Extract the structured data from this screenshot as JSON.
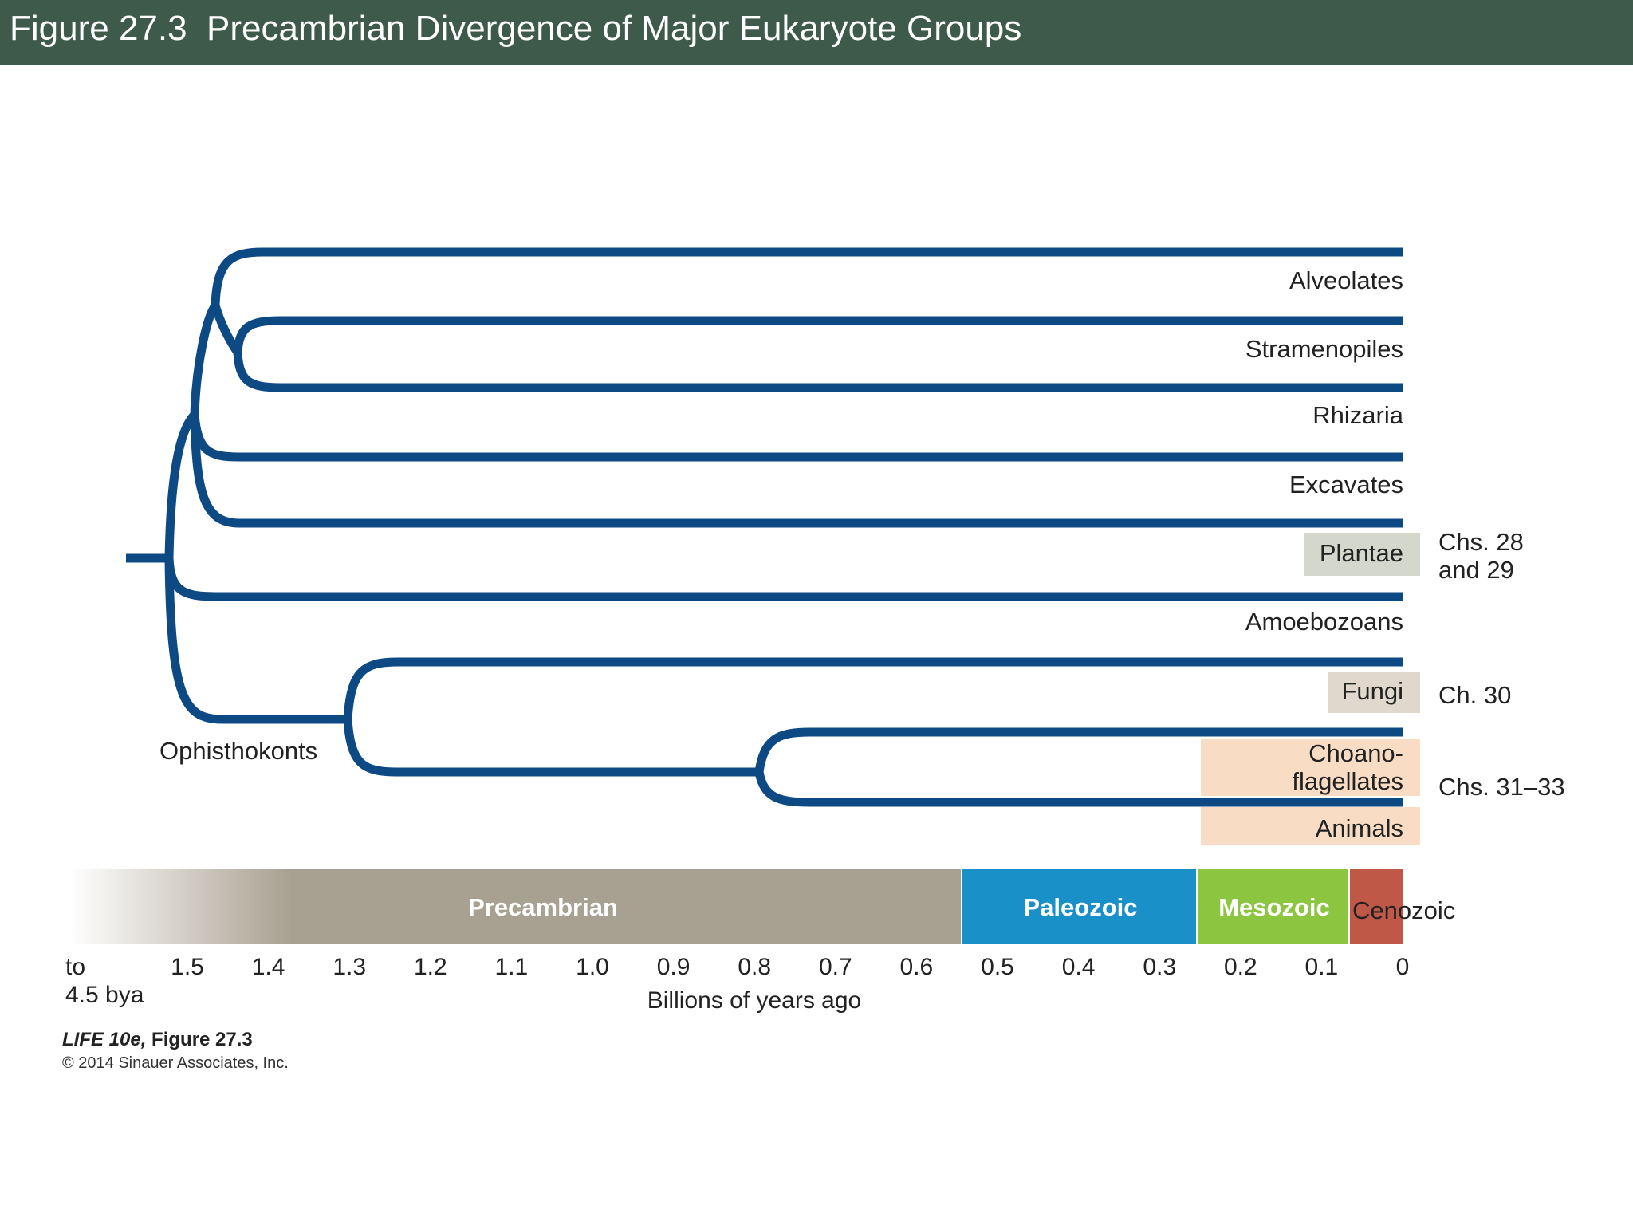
{
  "title": "Figure 27.3  Precambrian Divergence of Major Eukaryote Groups",
  "taxa": {
    "alveolates": "Alveolates",
    "stramenopiles": "Stramenopiles",
    "rhizaria": "Rhizaria",
    "excavates": "Excavates",
    "plantae": "Plantae",
    "amoebozoans": "Amoebozoans",
    "fungi": "Fungi",
    "choano1": "Choano-",
    "choano2": "flagellates",
    "animals": "Animals"
  },
  "clade_label": "Ophisthokonts",
  "chapters": {
    "plantae_1": "Chs. 28",
    "plantae_2": "and 29",
    "fungi": "Ch. 30",
    "animals": "Chs. 31–33"
  },
  "eras": {
    "precambrian": "Precambrian",
    "paleozoic": "Paleozoic",
    "mesozoic": "Mesozoic",
    "cenozoic": "Cenozoic"
  },
  "ticks": [
    "1.5",
    "1.4",
    "1.3",
    "1.2",
    "1.1",
    "1.0",
    "0.9",
    "0.8",
    "0.7",
    "0.6",
    "0.5",
    "0.4",
    "0.3",
    "0.2",
    "0.1",
    "0"
  ],
  "tick_start_1": "to",
  "tick_start_2": "4.5 bya",
  "axis_label": "Billions of years ago",
  "credit_title": "LIFE 10e,",
  "credit_fig": "Figure 27.3",
  "credit_copy": "© 2014 Sinauer Associates, Inc.",
  "colors": {
    "title_bar": "#3e5a4b",
    "branch": "#0d4a84",
    "plantae_box": "#d4d8cc",
    "fungi_box": "#e0d8cc",
    "animals_box": "#f8dcc4",
    "precambrian": "#a8a090",
    "paleozoic": "#1a90c8",
    "mesozoic": "#8cc640",
    "cenozoic": "#c05848"
  }
}
